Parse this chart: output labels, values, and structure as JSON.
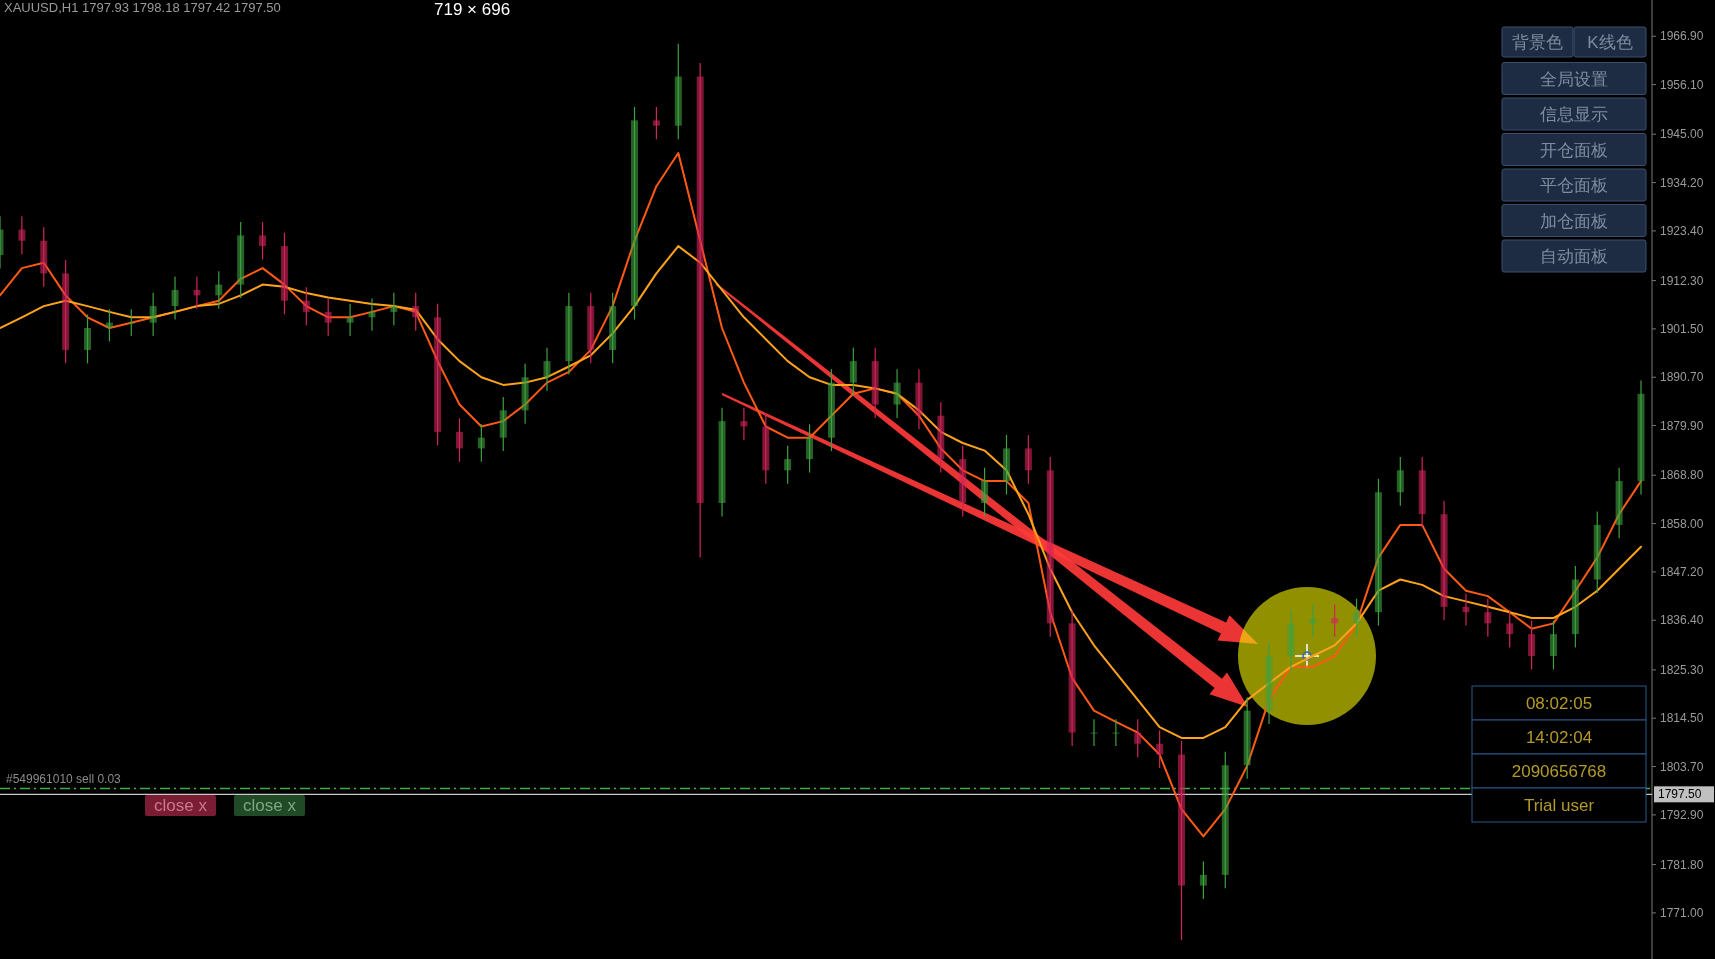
{
  "chart_data": {
    "type": "candlestick",
    "title": "XAUUSD,H1  1797.93 1798.18 1797.42 1797.50",
    "categories": [
      null,
      null,
      null,
      null,
      null,
      null,
      null,
      null,
      null,
      null,
      null,
      null,
      null,
      null,
      null,
      null,
      null,
      null,
      null,
      null,
      null,
      null,
      null,
      null,
      null,
      null,
      null,
      null,
      null,
      null,
      null,
      null,
      null,
      null,
      null,
      null,
      null,
      null,
      null,
      null,
      null,
      null,
      null,
      null,
      null,
      null,
      null,
      null,
      null,
      null,
      null,
      null,
      null,
      null,
      null,
      null,
      null,
      null,
      null,
      null,
      null,
      null,
      null,
      null,
      null,
      null,
      null,
      null,
      null,
      null,
      null,
      null,
      null,
      null,
      null,
      null
    ],
    "ohlc": [
      [
        1918.0,
        1926.7,
        1915.0,
        1923.7
      ],
      [
        1923.7,
        1926.7,
        1918.2,
        1921.2
      ],
      [
        1921.2,
        1924.2,
        1910.9,
        1913.9
      ],
      [
        1913.9,
        1916.9,
        1893.8,
        1896.8
      ],
      [
        1896.8,
        1904.7,
        1893.8,
        1901.7
      ],
      [
        1901.7,
        1905.9,
        1898.7,
        1902.9
      ],
      [
        1902.9,
        1905.9,
        1899.9,
        1902.9
      ],
      [
        1902.9,
        1909.6,
        1899.9,
        1906.6
      ],
      [
        1906.6,
        1913.2,
        1903.6,
        1910.2
      ],
      [
        1910.2,
        1913.2,
        1906.0,
        1909.0
      ],
      [
        1909.0,
        1914.4,
        1906.0,
        1911.4
      ],
      [
        1911.4,
        1925.4,
        1908.4,
        1922.4
      ],
      [
        1922.4,
        1925.4,
        1917.0,
        1920.0
      ],
      [
        1920.0,
        1923.0,
        1904.8,
        1907.8
      ],
      [
        1907.8,
        1910.8,
        1902.3,
        1905.3
      ],
      [
        1905.3,
        1908.3,
        1899.9,
        1902.9
      ],
      [
        1902.9,
        1907.1,
        1899.9,
        1904.1
      ],
      [
        1904.1,
        1908.3,
        1901.1,
        1905.3
      ],
      [
        1905.3,
        1909.6,
        1902.3,
        1906.6
      ],
      [
        1906.6,
        1909.6,
        1901.1,
        1904.1
      ],
      [
        1904.1,
        1907.1,
        1875.5,
        1878.5
      ],
      [
        1878.5,
        1881.5,
        1871.8,
        1874.8
      ],
      [
        1874.8,
        1880.2,
        1871.8,
        1877.2
      ],
      [
        1877.2,
        1886.3,
        1874.2,
        1883.3
      ],
      [
        1883.3,
        1893.7,
        1880.3,
        1890.7
      ],
      [
        1890.7,
        1897.3,
        1887.7,
        1894.3
      ],
      [
        1894.3,
        1909.6,
        1891.3,
        1906.6
      ],
      [
        1906.6,
        1909.6,
        1893.8,
        1896.8
      ],
      [
        1896.8,
        1909.6,
        1893.8,
        1906.6
      ],
      [
        1906.6,
        1951.1,
        1903.6,
        1948.1
      ],
      [
        1948.1,
        1951.1,
        1943.9,
        1946.9
      ],
      [
        1946.9,
        1965.2,
        1943.9,
        1957.9
      ],
      [
        1957.9,
        1960.9,
        1850.4,
        1862.6
      ],
      [
        1862.6,
        1883.9,
        1859.6,
        1880.9
      ],
      [
        1880.9,
        1883.9,
        1876.7,
        1879.7
      ],
      [
        1879.7,
        1882.7,
        1866.9,
        1869.9
      ],
      [
        1869.9,
        1875.4,
        1866.9,
        1872.4
      ],
      [
        1872.4,
        1880.2,
        1869.4,
        1877.2
      ],
      [
        1877.2,
        1892.5,
        1874.2,
        1889.5
      ],
      [
        1889.5,
        1897.3,
        1886.5,
        1894.3
      ],
      [
        1894.3,
        1897.3,
        1881.6,
        1884.6
      ],
      [
        1884.6,
        1892.5,
        1881.6,
        1889.5
      ],
      [
        1889.5,
        1892.5,
        1879.1,
        1882.1
      ],
      [
        1882.1,
        1885.1,
        1869.4,
        1872.4
      ],
      [
        1872.4,
        1875.4,
        1859.6,
        1862.6
      ],
      [
        1862.6,
        1870.5,
        1859.6,
        1867.5
      ],
      [
        1867.5,
        1877.8,
        1864.5,
        1874.8
      ],
      [
        1874.8,
        1877.8,
        1866.9,
        1869.9
      ],
      [
        1869.9,
        1872.9,
        1832.7,
        1835.7
      ],
      [
        1835.7,
        1838.7,
        1808.3,
        1811.3
      ],
      [
        1811.3,
        1814.3,
        1808.3,
        1811.3
      ],
      [
        1811.3,
        1814.3,
        1808.3,
        1811.3
      ],
      [
        1811.3,
        1814.3,
        1805.8,
        1808.8
      ],
      [
        1808.8,
        1811.8,
        1803.4,
        1806.4
      ],
      [
        1806.4,
        1809.4,
        1764.9,
        1777.1
      ],
      [
        1777.1,
        1782.5,
        1774.1,
        1779.5
      ],
      [
        1779.5,
        1807.0,
        1776.5,
        1804.0
      ],
      [
        1804.0,
        1819.2,
        1801.0,
        1816.2
      ],
      [
        1816.2,
        1831.4,
        1813.2,
        1828.4
      ],
      [
        1828.4,
        1838.7,
        1825.4,
        1835.7
      ],
      [
        1835.7,
        1839.9,
        1832.7,
        1836.9
      ],
      [
        1836.9,
        1839.9,
        1832.7,
        1835.7
      ],
      [
        1835.7,
        1841.2,
        1832.7,
        1838.2
      ],
      [
        1838.2,
        1868.0,
        1835.2,
        1865.0
      ],
      [
        1865.0,
        1872.9,
        1862.0,
        1869.9
      ],
      [
        1869.9,
        1872.9,
        1857.1,
        1860.1
      ],
      [
        1860.1,
        1863.1,
        1836.4,
        1839.4
      ],
      [
        1839.4,
        1842.4,
        1835.2,
        1838.2
      ],
      [
        1838.2,
        1841.2,
        1832.7,
        1835.7
      ],
      [
        1835.7,
        1838.7,
        1830.3,
        1833.3
      ],
      [
        1833.3,
        1836.3,
        1825.4,
        1828.4
      ],
      [
        1828.4,
        1836.3,
        1825.4,
        1833.3
      ],
      [
        1833.3,
        1848.5,
        1830.3,
        1845.5
      ],
      [
        1845.5,
        1860.7,
        1842.5,
        1857.7
      ],
      [
        1857.7,
        1870.5,
        1854.7,
        1867.5
      ],
      [
        1867.5,
        1890.0,
        1864.5,
        1887.0
      ]
    ],
    "series": [
      {
        "type": "line",
        "color": "#ff5a14",
        "values": [
          1909.0,
          1915.1,
          1916.3,
          1909.0,
          1904.1,
          1901.7,
          1902.9,
          1904.1,
          1905.3,
          1906.6,
          1907.8,
          1912.7,
          1915.1,
          1911.4,
          1906.6,
          1904.1,
          1904.1,
          1905.3,
          1906.6,
          1905.3,
          1894.3,
          1884.6,
          1879.7,
          1880.9,
          1884.6,
          1889.5,
          1891.9,
          1896.8,
          1906.6,
          1921.2,
          1933.4,
          1940.8,
          1921.2,
          1901.7,
          1889.5,
          1879.7,
          1877.2,
          1877.2,
          1882.1,
          1887.0,
          1888.2,
          1887.0,
          1882.1,
          1874.8,
          1869.9,
          1867.5,
          1867.5,
          1862.6,
          1838.2,
          1823.5,
          1816.2,
          1813.7,
          1811.3,
          1806.4,
          1794.2,
          1788.1,
          1794.2,
          1803.9,
          1818.6,
          1826.0,
          1826.0,
          1828.4,
          1835.7,
          1850.4,
          1857.7,
          1857.7,
          1847.9,
          1843.0,
          1841.8,
          1838.2,
          1834.5,
          1835.7,
          1843.0,
          1850.4,
          1860.1,
          1867.5
        ]
      },
      {
        "type": "line",
        "color": "#ffa31a",
        "values": [
          1901.7,
          1904.1,
          1906.6,
          1907.8,
          1906.6,
          1905.3,
          1904.1,
          1904.1,
          1905.3,
          1906.6,
          1907.1,
          1909.0,
          1911.4,
          1910.9,
          1909.5,
          1908.5,
          1907.8,
          1907.1,
          1906.6,
          1905.8,
          1899.2,
          1894.3,
          1890.7,
          1889.0,
          1889.5,
          1890.7,
          1893.1,
          1895.6,
          1900.5,
          1906.6,
          1913.9,
          1920.0,
          1916.3,
          1910.2,
          1904.1,
          1899.2,
          1894.3,
          1890.7,
          1889.0,
          1889.0,
          1888.2,
          1887.0,
          1883.3,
          1878.5,
          1876.0,
          1874.3,
          1869.9,
          1860.1,
          1847.9,
          1838.2,
          1830.8,
          1824.7,
          1818.6,
          1812.5,
          1810.1,
          1810.1,
          1812.5,
          1818.6,
          1822.3,
          1826.0,
          1828.4,
          1830.8,
          1835.7,
          1843.0,
          1845.5,
          1844.3,
          1841.8,
          1840.6,
          1839.4,
          1838.2,
          1836.9,
          1836.9,
          1839.4,
          1843.0,
          1847.9,
          1852.8
        ]
      }
    ],
    "ylim": [
      1760.7,
      1975.0
    ],
    "yticks": [
      {
        "value": 1966.9,
        "label": "1966.90"
      },
      {
        "value": 1956.1,
        "label": "1956.10"
      },
      {
        "value": 1945.0,
        "label": "1945.00"
      },
      {
        "value": 1934.2,
        "label": "1934.20"
      },
      {
        "value": 1923.4,
        "label": "1923.40"
      },
      {
        "value": 1912.3,
        "label": "1912.30"
      },
      {
        "value": 1901.5,
        "label": "1901.50"
      },
      {
        "value": 1890.7,
        "label": "1890.70"
      },
      {
        "value": 1879.9,
        "label": "1879.90"
      },
      {
        "value": 1868.8,
        "label": "1868.80"
      },
      {
        "value": 1858.0,
        "label": "1858.00"
      },
      {
        "value": 1847.2,
        "label": "1847.20"
      },
      {
        "value": 1836.4,
        "label": "1836.40"
      },
      {
        "value": 1825.3,
        "label": "1825.30"
      },
      {
        "value": 1814.5,
        "label": "1814.50"
      },
      {
        "value": 1803.7,
        "label": "1803.70"
      },
      {
        "value": 1792.9,
        "label": "1792.90"
      },
      {
        "value": 1781.8,
        "label": "1781.80"
      },
      {
        "value": 1771.0,
        "label": "1771.00"
      }
    ],
    "tick_labels": "y",
    "ref_lines": [
      {
        "axis": "y",
        "value": 1797.5,
        "label": "1797.50",
        "color": "#c8c8c8"
      },
      {
        "axis": "y",
        "value": 1798.8,
        "label": "#549961010 sell 0.03",
        "color": "#3cb043",
        "line_style": "dashed"
      }
    ],
    "annotations": [
      "719 × 696",
      "背景色",
      "K线色",
      "全局设置",
      "信息显示",
      "开仓面板",
      "平仓面板",
      "加仓面板",
      "自动面板",
      "close x",
      "close x",
      "08:02:05",
      "14:02:04",
      "2090656768",
      "Trial user"
    ]
  }
}
